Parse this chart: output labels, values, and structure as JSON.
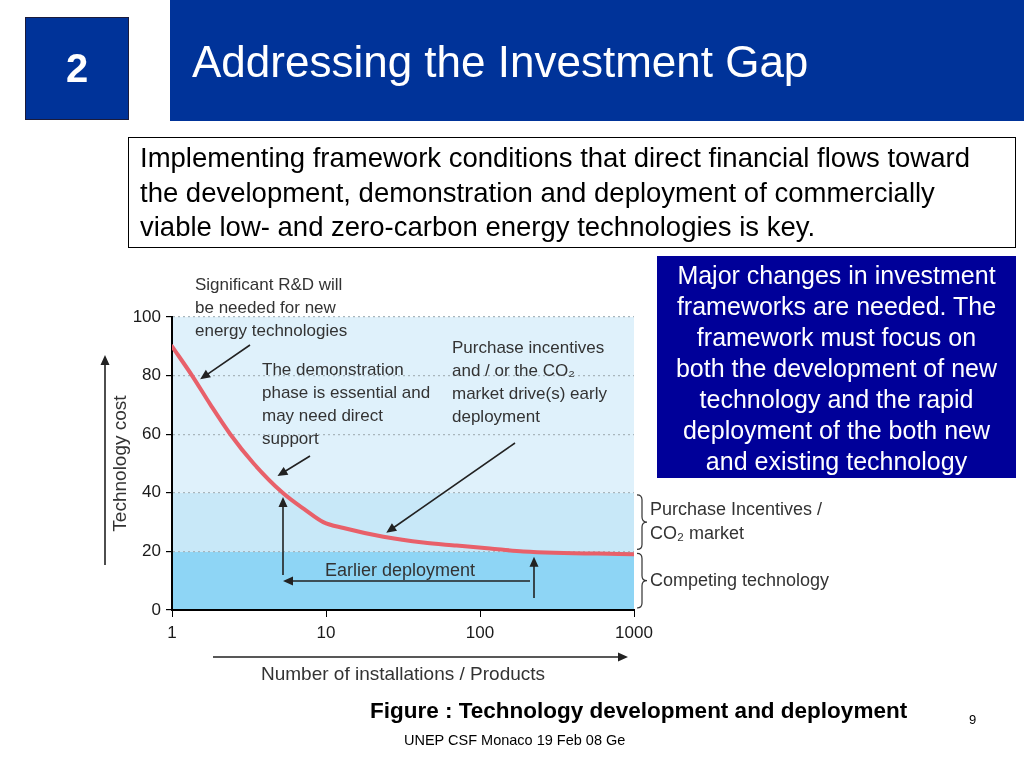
{
  "chart_data": {
    "type": "line",
    "title": "Addressing the Investment Gap",
    "subtitle": "Implementing framework conditions that direct financial flows toward the development, demonstration and deployment of commercially viable low- and zero-carbon energy technologies is key.",
    "xlabel": "Number of installations / Products",
    "ylabel": "Technology cost",
    "x": [
      1,
      1.35,
      1.78,
      2.39,
      3.39,
      5.23,
      7.4,
      9.6,
      13,
      23.6,
      42.8,
      70.5,
      116,
      191,
      1000
    ],
    "series": [
      {
        "color": "#e8606a",
        "values": [
          90,
          80,
          70,
          60,
          50,
          40,
          34,
          30,
          28,
          25,
          23,
          22,
          21,
          20,
          19
        ]
      }
    ],
    "log": "x",
    "xlim": [
      1,
      1000
    ],
    "xticks": [
      1,
      10,
      100,
      1000
    ],
    "ylim": [
      0,
      100
    ],
    "yticks": [
      0,
      20,
      40,
      60,
      80,
      100
    ],
    "grid": "y",
    "bands": [
      {
        "axis": "y",
        "from": 0,
        "to": 20,
        "label": "Competing technology",
        "color": "#8ed5f5"
      },
      {
        "axis": "y",
        "from": 20,
        "to": 40,
        "label": "Purchase Incentives / CO₂ market",
        "color": "#c8e8f8"
      },
      {
        "axis": "y",
        "from": 40,
        "to": 100,
        "color": "#dff1fb"
      }
    ],
    "annotations": [
      {
        "text": "Significant R&D will be needed for new energy technologies",
        "x": 1.45,
        "y": 78
      },
      {
        "text": "The demonstration phase is essential and may need direct support",
        "x": 4.6,
        "y": 45
      },
      "Purchase incentives and / or the CO₂ market drive(s) early deployment",
      "Earlier deployment",
      "2",
      "Major changes in investment frameworks are needed. The framework must focus on both the development of new technology and the rapid deployment of the both new and existing technology",
      "Figure : Technology development and deployment",
      "UNEP CSF Monaco 19 Feb 08 Ge",
      "9"
    ]
  }
}
